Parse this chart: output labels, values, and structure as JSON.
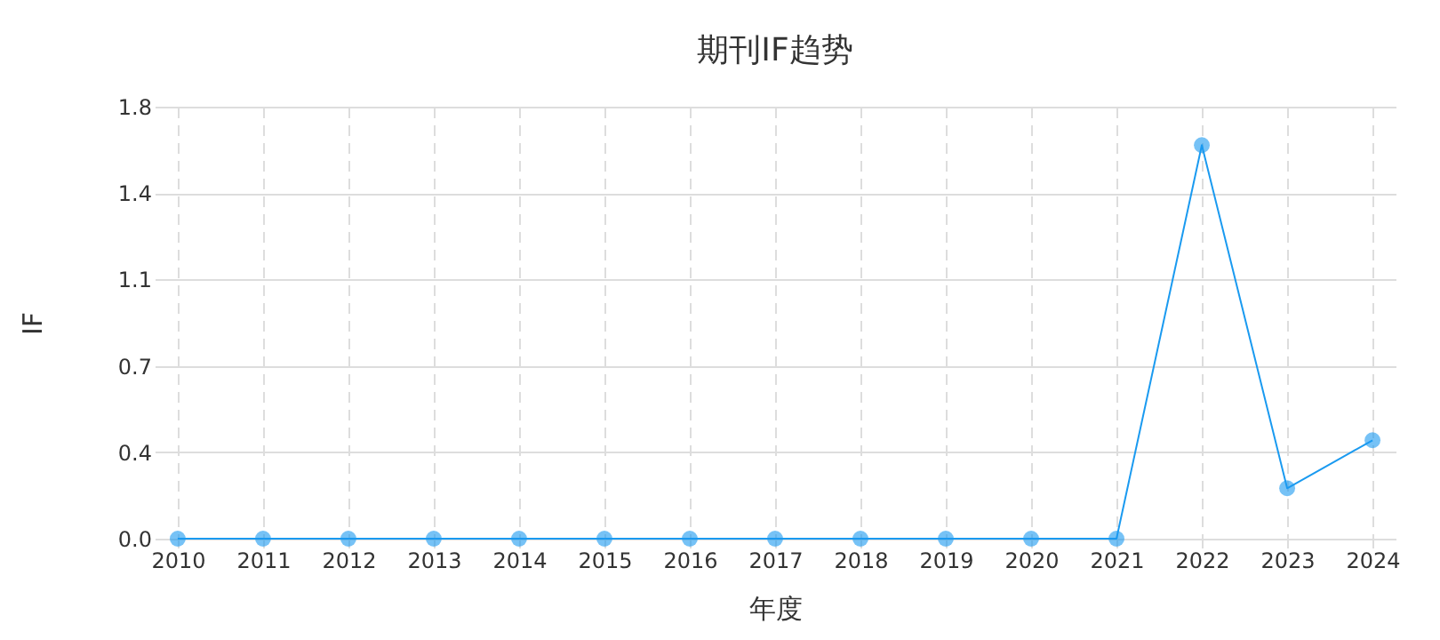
{
  "chart_data": {
    "type": "line",
    "title": "期刊IF趋势",
    "xlabel": "年度",
    "ylabel": "IF",
    "categories": [
      "2010",
      "2011",
      "2012",
      "2013",
      "2014",
      "2015",
      "2016",
      "2017",
      "2018",
      "2019",
      "2020",
      "2021",
      "2022",
      "2023",
      "2024"
    ],
    "series": [
      {
        "color": "#1a9af0",
        "values": [
          0,
          0,
          0,
          0,
          0,
          0,
          0,
          0,
          0,
          0,
          0,
          0,
          1.64,
          0.21,
          0.41
        ]
      }
    ],
    "ylim": [
      0,
      1.8
    ],
    "yticks": [
      {
        "value": 0,
        "label": "0.0"
      },
      {
        "value": 0.36,
        "label": "0.4"
      },
      {
        "value": 0.72,
        "label": "0.7"
      },
      {
        "value": 1.08,
        "label": "1.1"
      },
      {
        "value": 1.44,
        "label": "1.4"
      },
      {
        "value": 1.8,
        "label": "1.8"
      }
    ],
    "grid": true,
    "marker": "circle",
    "line_style": "solid"
  }
}
